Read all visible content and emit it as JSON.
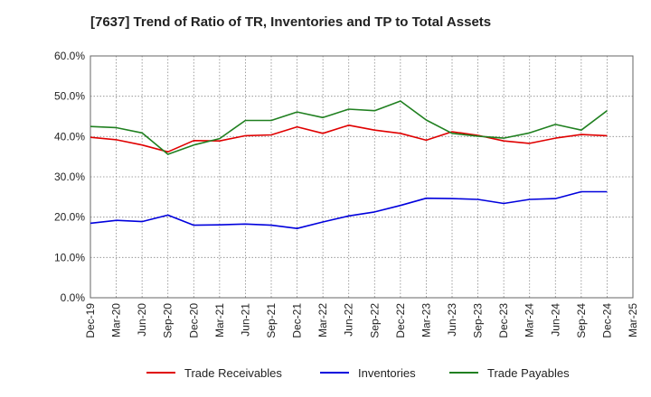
{
  "chart_data": {
    "type": "line",
    "title": "[7637]  Trend of Ratio of TR, Inventories and TP to Total Assets",
    "xlabel": "",
    "ylabel": "",
    "ylim": [
      0,
      60
    ],
    "y_ticks": [
      "0.0%",
      "10.0%",
      "20.0%",
      "30.0%",
      "40.0%",
      "50.0%",
      "60.0%"
    ],
    "x_tick_labels": [
      "Dec-19",
      "Mar-20",
      "Jun-20",
      "Sep-20",
      "Dec-20",
      "Mar-21",
      "Jun-21",
      "Sep-21",
      "Dec-21",
      "Mar-22",
      "Jun-22",
      "Sep-22",
      "Dec-22",
      "Mar-23",
      "Jun-23",
      "Sep-23",
      "Dec-23",
      "Mar-24",
      "Jun-24",
      "Sep-24",
      "Dec-24",
      "Mar-25"
    ],
    "categories": [
      "Dec-19",
      "Mar-20",
      "Jun-20",
      "Sep-20",
      "Dec-20",
      "Mar-21",
      "Jun-21",
      "Sep-21",
      "Dec-21",
      "Mar-22",
      "Jun-22",
      "Sep-22",
      "Dec-22",
      "Mar-23",
      "Jun-23",
      "Sep-23",
      "Dec-23",
      "Mar-24",
      "Jun-24",
      "Sep-24",
      "Dec-24"
    ],
    "grid": true,
    "legend_position": "bottom",
    "series": [
      {
        "name": "Trade Receivables",
        "color": "#e00000",
        "values": [
          39.8,
          39.2,
          37.9,
          36.2,
          39.0,
          38.9,
          40.2,
          40.4,
          42.4,
          40.8,
          42.8,
          41.6,
          40.8,
          39.1,
          41.2,
          40.3,
          38.9,
          38.3,
          39.6,
          40.5,
          40.2
        ]
      },
      {
        "name": "Inventories",
        "color": "#0000dd",
        "values": [
          18.5,
          19.2,
          18.9,
          20.5,
          18.0,
          18.1,
          18.3,
          18.0,
          17.2,
          18.8,
          20.3,
          21.3,
          22.9,
          24.7,
          24.6,
          24.4,
          23.4,
          24.4,
          24.6,
          26.3,
          26.3
        ]
      },
      {
        "name": "Trade Payables",
        "color": "#208020",
        "values": [
          42.5,
          42.2,
          40.9,
          35.6,
          37.9,
          39.5,
          44.0,
          44.0,
          46.1,
          44.7,
          46.8,
          46.4,
          48.8,
          44.1,
          40.8,
          40.1,
          39.6,
          40.9,
          43.0,
          41.6,
          46.4
        ]
      }
    ]
  }
}
